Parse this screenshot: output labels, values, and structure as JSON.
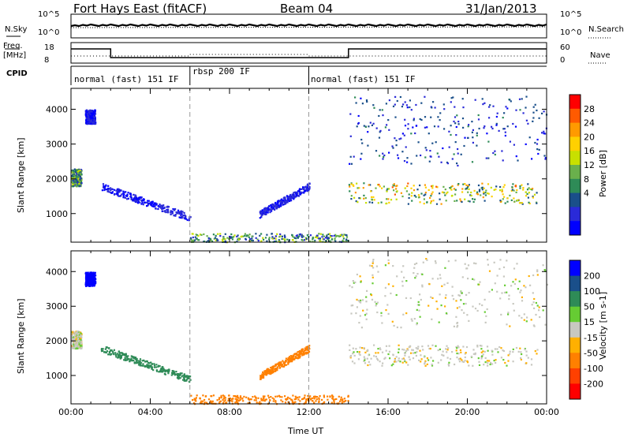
{
  "header": {
    "station": "Fort Hays East (fitACF)",
    "beam": "Beam 04",
    "date": "31/Jan/2013"
  },
  "summary_panels": {
    "nsky_label": "N.Sky",
    "nsearch_label": "N.Search",
    "freq_label_line1": "Freq.",
    "freq_label_line2": "[MHz]",
    "nave_label": "Nave",
    "cpid_label": "CPID",
    "log_ticks": [
      "10^5",
      "10^0"
    ],
    "freq_ticks": [
      "18",
      "8"
    ],
    "nave_ticks": [
      "60",
      "0"
    ]
  },
  "cpid_modes": [
    {
      "label": "normal (fast) 151 IF",
      "start_hour": 0,
      "end_hour": 6
    },
    {
      "label": "rbsp 200 IF",
      "start_hour": 6,
      "end_hour": 12
    },
    {
      "label": "normal (fast) 151 IF",
      "start_hour": 12,
      "end_hour": 24
    }
  ],
  "chart_data": [
    {
      "type": "heatmap",
      "name": "power",
      "ylabel": "Slant Range [km]",
      "xlabel": "",
      "xlim": [
        0,
        24
      ],
      "ylim": [
        180,
        4600
      ],
      "yticks": [
        1000,
        2000,
        3000,
        4000
      ],
      "colorbar": {
        "title": "Power [dB]",
        "ticks": [
          "28",
          "24",
          "20",
          "16",
          "12",
          "8",
          "4"
        ],
        "colors": [
          "#ff0000",
          "#ff5a00",
          "#ff9a00",
          "#ffd000",
          "#c8e000",
          "#6ab04c",
          "#2e8b57",
          "#1a4f8a",
          "#2a2ad8",
          "#0000ff"
        ]
      },
      "features": [
        {
          "desc": "dense F-region echoes",
          "x": [
            14,
            23.5
          ],
          "y": [
            1300,
            1900
          ],
          "peak_db": 28
        },
        {
          "desc": "near-range echoes",
          "x": [
            6,
            14
          ],
          "y": [
            200,
            450
          ],
          "peak_db": 20
        },
        {
          "desc": "evening patch",
          "x": [
            0,
            0.5
          ],
          "y": [
            1800,
            2300
          ],
          "peak_db": 20
        },
        {
          "desc": "patch",
          "x": [
            0.7,
            1.2
          ],
          "y": [
            3600,
            4000
          ],
          "peak_db": 8
        },
        {
          "desc": "descending band",
          "x": [
            1.5,
            6
          ],
          "y": [
            1800,
            900
          ],
          "peak_db": 8
        },
        {
          "desc": "ascending band",
          "x": [
            9.5,
            12
          ],
          "y": [
            1000,
            1800
          ],
          "peak_db": 8
        },
        {
          "desc": "scattered far-range echoes",
          "x": [
            14,
            24
          ],
          "y": [
            2400,
            4400
          ],
          "peak_db": 12
        }
      ]
    },
    {
      "type": "heatmap",
      "name": "velocity",
      "ylabel": "Slant Range [km]",
      "xlabel": "Time UT",
      "xlim": [
        0,
        24
      ],
      "ylim": [
        180,
        4600
      ],
      "yticks": [
        1000,
        2000,
        3000,
        4000
      ],
      "xticks": [
        "00:00",
        "04:00",
        "08:00",
        "12:00",
        "16:00",
        "20:00",
        "00:00"
      ],
      "colorbar": {
        "title": "Velocity [m s-1]",
        "ticks": [
          "200",
          "100",
          "50",
          "15",
          "-15",
          "-50",
          "-100",
          "-200"
        ],
        "colors": [
          "#0000ff",
          "#1a4f8a",
          "#2e8b57",
          "#66cc33",
          "#c8c8c0",
          "#ffb000",
          "#ff8000",
          "#ff4000",
          "#ff0000"
        ]
      },
      "features": [
        {
          "desc": "ground scatter band",
          "x": [
            14,
            23.5
          ],
          "y": [
            1300,
            1900
          ],
          "velocity": 0
        },
        {
          "desc": "near-range echoes",
          "x": [
            6,
            14
          ],
          "y": [
            200,
            450
          ],
          "velocity": -50
        },
        {
          "desc": "evening patch",
          "x": [
            0,
            0.5
          ],
          "y": [
            1800,
            2300
          ],
          "velocity": 0
        },
        {
          "desc": "patch",
          "x": [
            0.7,
            1.2
          ],
          "y": [
            3600,
            4000
          ],
          "velocity": 200
        },
        {
          "desc": "descending band",
          "x": [
            1.5,
            6
          ],
          "y": [
            1800,
            900
          ],
          "velocity": 50
        },
        {
          "desc": "ascending band",
          "x": [
            9.5,
            12
          ],
          "y": [
            1000,
            1800
          ],
          "velocity": -50
        },
        {
          "desc": "scattered far-range echoes",
          "x": [
            14,
            24
          ],
          "y": [
            2400,
            4400
          ],
          "velocity": 0
        }
      ]
    }
  ]
}
